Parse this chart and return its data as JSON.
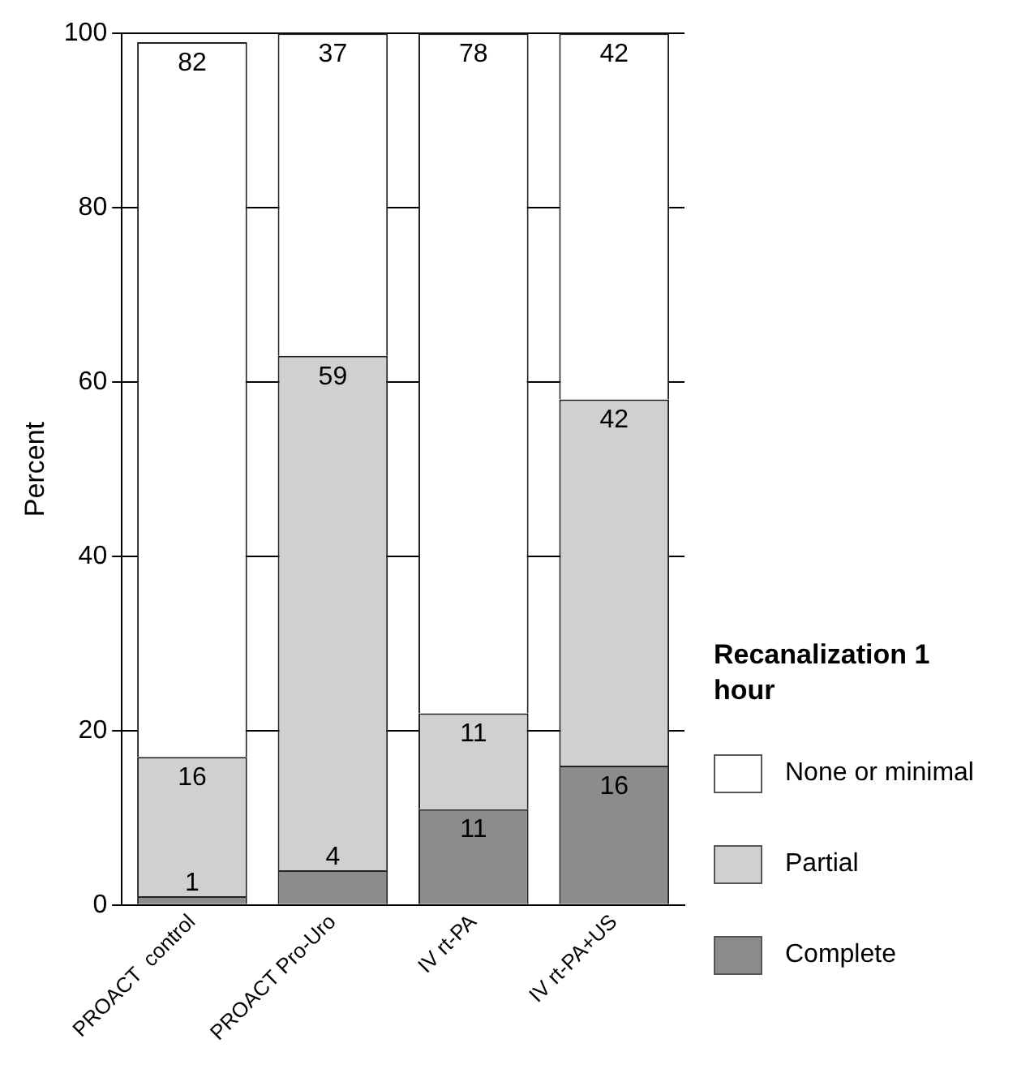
{
  "chart_data": {
    "type": "bar",
    "stacked": true,
    "ylabel": "Percent",
    "legend_title": "Recanalization 1 hour",
    "categories": [
      "PROACT  control",
      "PROACT Pro-Uro",
      "IV rt-PA",
      "IV rt-PA+US"
    ],
    "series": [
      {
        "name": "Complete",
        "color": "#8c8c8c",
        "values": [
          1,
          4,
          11,
          16
        ]
      },
      {
        "name": "Partial",
        "color": "#d0d0d0",
        "values": [
          16,
          59,
          11,
          42
        ]
      },
      {
        "name": "None or minimal",
        "color": "#ffffff",
        "values": [
          82,
          37,
          78,
          42
        ]
      }
    ],
    "ylim": [
      0,
      100
    ],
    "yticks": [
      0,
      20,
      40,
      60,
      80,
      100
    ],
    "grid": "y",
    "legend": "right",
    "data_labels": true
  }
}
